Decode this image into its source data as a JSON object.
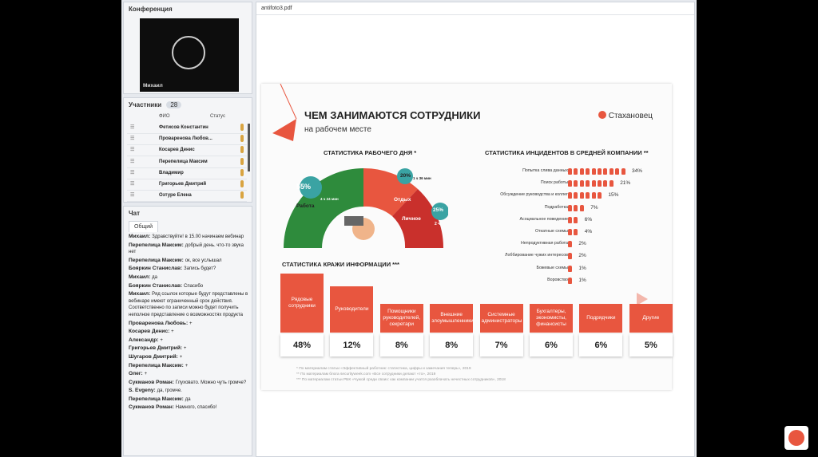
{
  "conference": {
    "title": "Конференция",
    "speaker": "Михаил"
  },
  "participants": {
    "title": "Участники",
    "count": "28",
    "columns": {
      "name": "ФИО",
      "status": "Статус"
    },
    "rows": [
      "Фетисов Константин",
      "Проваренова Любов...",
      "Косарев Денис",
      "Перепелица Максим",
      "Владимир",
      "Григорьев Дмитрий",
      "Озтуре Елена"
    ]
  },
  "chat": {
    "title": "Чат",
    "tab": "Общий",
    "messages": [
      {
        "a": "Михаил:",
        "t": "Здравствуйте! в 15.00 начинаем вебинар"
      },
      {
        "a": "Перепелица Максим:",
        "t": "добрый день. что-то звука нет"
      },
      {
        "a": "Перепелица Максим:",
        "t": "ок, все услышал"
      },
      {
        "a": "Бояркин Станислав:",
        "t": "Запись будет?"
      },
      {
        "a": "Михаил:",
        "t": "да"
      },
      {
        "a": "Бояркин Станислав:",
        "t": "Спасибо"
      },
      {
        "a": "Михаил:",
        "t": "Ряд ссылок которые будут представлены в вебинаре имеют ограниченный срок действия. Соответственно по записи можно будет получить неполное представление о возможностях продукта"
      },
      {
        "a": "Проваренова Любовь:",
        "t": "+"
      },
      {
        "a": "Косарев Денис:",
        "t": "+"
      },
      {
        "a": "Александр:",
        "t": "+"
      },
      {
        "a": "Григорьев Дмитрий:",
        "t": "+"
      },
      {
        "a": "Шугаров Дмитрий:",
        "t": "+"
      },
      {
        "a": "Перепелица Максим:",
        "t": "+"
      },
      {
        "a": "Олег:",
        "t": "+"
      },
      {
        "a": "Сукманов Роман:",
        "t": "Глуховато. Можно чуть громче?"
      },
      {
        "a": "S. Evgeny:",
        "t": "да, громче."
      },
      {
        "a": "Перепелица Максим:",
        "t": "да"
      },
      {
        "a": "Сукманов Роман:",
        "t": "Намного, спасибо!"
      }
    ]
  },
  "pdf": {
    "filename": "antifoto3.pdf",
    "title": "ЧЕМ ЗАНИМАЮТСЯ СОТРУДНИКИ",
    "subtitle": "на рабочем месте",
    "brand": "Стахановец",
    "day_title": "СТАТИСТИКА РАБОЧЕГО ДНЯ *",
    "day": {
      "work_label": "Работа",
      "work_pct": "55%",
      "work_time": "4 ч 24 мин",
      "rest_label": "Отдых",
      "rest_pct": "20%",
      "rest_time": "1 ч 36 мин",
      "personal_label": "Личное",
      "personal_pct": "25%",
      "personal_time": "2 ч"
    },
    "inc_title": "СТАТИСТИКА ИНЦИДЕНТОВ В СРЕДНЕЙ КОМПАНИИ **",
    "incidents": [
      {
        "label": "Попытка слива данных",
        "value": "34%",
        "n": 10
      },
      {
        "label": "Поиск работы",
        "value": "21%",
        "n": 8
      },
      {
        "label": "Обсуждение руководства и коллег",
        "value": "15%",
        "n": 6
      },
      {
        "label": "Подработка",
        "value": "7%",
        "n": 3
      },
      {
        "label": "Асоциальное поведение",
        "value": "6%",
        "n": 2
      },
      {
        "label": "Откатные схемы",
        "value": "4%",
        "n": 2
      },
      {
        "label": "Непродуктивная работа",
        "value": "2%",
        "n": 1
      },
      {
        "label": "Лоббирование чужих интересов",
        "value": "2%",
        "n": 1
      },
      {
        "label": "Божевые схемы",
        "value": "1%",
        "n": 1
      },
      {
        "label": "Воровство",
        "value": "1%",
        "n": 1
      }
    ],
    "theft_title": "СТАТИСТИКА КРАЖИ ИНФОРМАЦИИ ***",
    "theft": [
      {
        "label": "Рядовые сотрудники",
        "value": "48%",
        "h": 0.48
      },
      {
        "label": "Руководители",
        "value": "12%",
        "h": 0.12
      },
      {
        "label": "Помощники руководителей, секретари",
        "value": "8%",
        "h": 0.08
      },
      {
        "label": "Внешние злоумышленники",
        "value": "8%",
        "h": 0.08
      },
      {
        "label": "Системные администраторы",
        "value": "7%",
        "h": 0.07
      },
      {
        "label": "Бухгалтеры, экономисты, финансисты",
        "value": "6%",
        "h": 0.06
      },
      {
        "label": "Подрядчики",
        "value": "6%",
        "h": 0.06
      },
      {
        "label": "Другие",
        "value": "5%",
        "h": 0.05
      }
    ],
    "footnotes": [
      "* По материалам статьи «Эффективный работник: статистика, цифры и замечания теперь», 2019",
      "** По материалам блога securityweek.com «Все сотрудники делают «то», 2019",
      "*** По материалам статьи РБК «Чужой среди своих: как компании учатся разоблачать нечестных сотрудников», 2018"
    ]
  },
  "colors": {
    "accent": "#e8563f",
    "green": "#2e8b3c",
    "teal": "#3aa3a3"
  }
}
